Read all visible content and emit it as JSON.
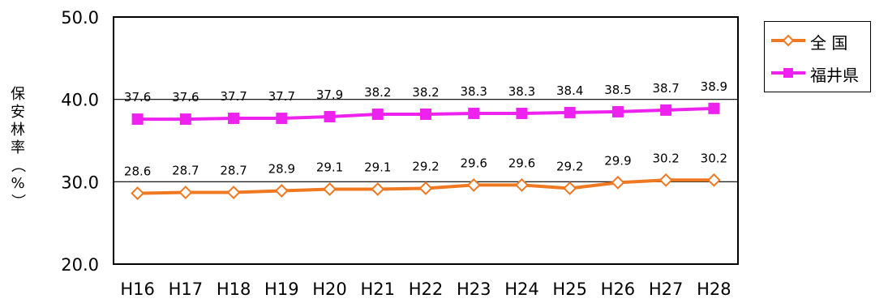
{
  "chart_data": {
    "type": "line",
    "categories": [
      "H16",
      "H17",
      "H18",
      "H19",
      "H20",
      "H21",
      "H22",
      "H23",
      "H24",
      "H25",
      "H26",
      "H27",
      "H28"
    ],
    "series": [
      {
        "name": "全 国",
        "values": [
          28.6,
          28.7,
          28.7,
          28.9,
          29.1,
          29.1,
          29.2,
          29.6,
          29.6,
          29.2,
          29.9,
          30.2,
          30.2
        ],
        "color": "#F07820",
        "marker": "diamond-open"
      },
      {
        "name": "福井県",
        "values": [
          37.6,
          37.6,
          37.7,
          37.7,
          37.9,
          38.2,
          38.2,
          38.3,
          38.3,
          38.4,
          38.5,
          38.7,
          38.9
        ],
        "color": "#EE22EE",
        "marker": "square-filled"
      }
    ],
    "ylabel": "保安林率（%）",
    "ylim": [
      20.0,
      50.0
    ],
    "yticks": [
      "20.0",
      "30.0",
      "40.0",
      "50.0"
    ],
    "gridlines_at": [
      30.0,
      40.0
    ],
    "legend_position": "top-right"
  }
}
